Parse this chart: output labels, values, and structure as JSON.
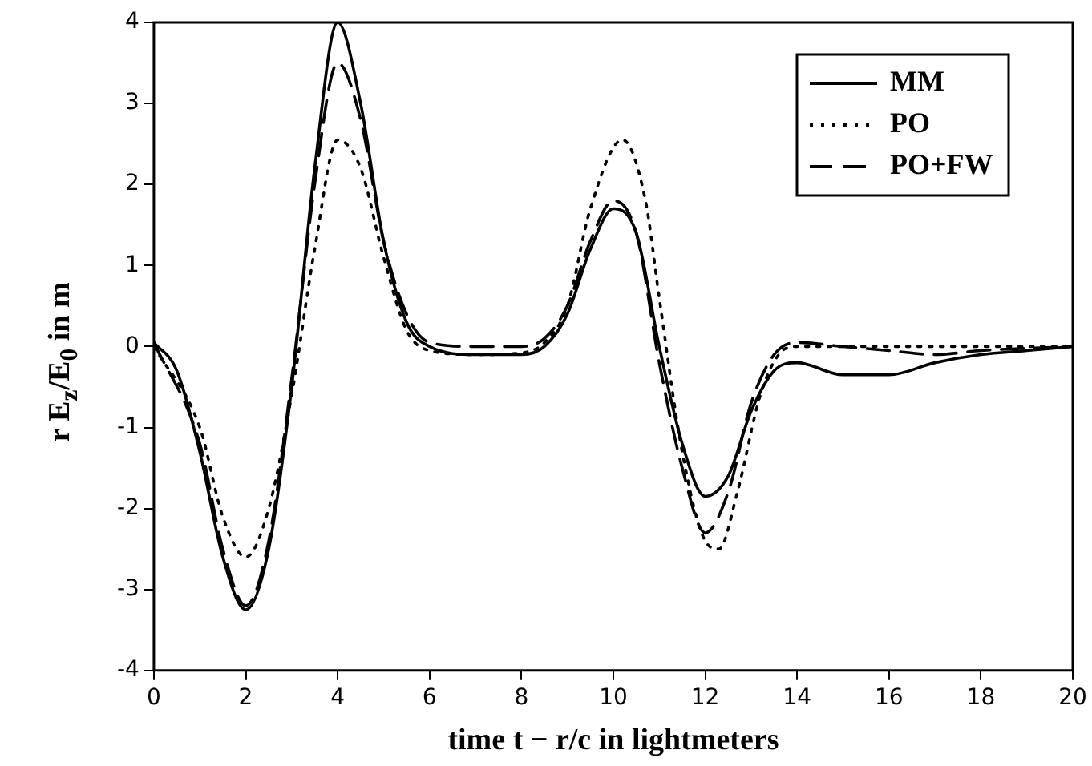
{
  "chart_data": {
    "type": "line",
    "xlabel": "time t − r/c in lightmeters",
    "ylabel": "r E$_{z}$/E$_{0}$ in m",
    "xlim": [
      0,
      20
    ],
    "ylim": [
      -4,
      4
    ],
    "xticks": [
      0,
      2,
      4,
      6,
      8,
      10,
      12,
      14,
      16,
      18,
      20
    ],
    "yticks": [
      -4,
      -3,
      -2,
      -1,
      0,
      1,
      2,
      3,
      4
    ],
    "grid": false,
    "legend": "top right",
    "marker": "none",
    "series": [
      {
        "name": "MM",
        "color": "#000000",
        "line_style": "solid",
        "x": [
          0,
          0.5,
          1,
          1.5,
          2,
          2.5,
          3,
          3.5,
          4,
          4.5,
          5,
          5.5,
          6,
          7,
          8,
          8.5,
          9,
          9.5,
          10,
          10.5,
          11,
          11.5,
          12,
          12.5,
          13,
          13.5,
          14,
          15,
          16,
          17,
          18,
          19,
          20
        ],
        "values": [
          0.05,
          -0.3,
          -1.3,
          -2.6,
          -3.25,
          -2.5,
          -0.5,
          2.2,
          4.0,
          3.0,
          1.3,
          0.3,
          0.0,
          -0.1,
          -0.1,
          0,
          0.4,
          1.2,
          1.7,
          1.4,
          0.0,
          -1.2,
          -1.85,
          -1.6,
          -0.8,
          -0.3,
          -0.2,
          -0.35,
          -0.35,
          -0.2,
          -0.1,
          -0.05,
          0
        ]
      },
      {
        "name": "PO",
        "color": "#000000",
        "line_style": "dotted",
        "x": [
          0,
          1,
          1.5,
          2,
          2.5,
          3,
          3.5,
          4,
          4.5,
          5,
          5.5,
          6,
          7,
          8,
          8.5,
          9,
          9.5,
          10.2,
          10.7,
          11,
          11.5,
          12,
          12.3,
          12.7,
          13.2,
          13.6,
          14,
          16,
          18,
          20
        ],
        "values": [
          0,
          -1.0,
          -2.1,
          -2.6,
          -2.0,
          -0.6,
          1.2,
          2.55,
          2.2,
          1.1,
          0.2,
          -0.05,
          -0.1,
          -0.08,
          0.05,
          0.5,
          1.7,
          2.55,
          1.8,
          0.6,
          -1.3,
          -2.4,
          -2.5,
          -1.8,
          -0.6,
          -0.1,
          0,
          0,
          0,
          0
        ]
      },
      {
        "name": "PO+FW",
        "color": "#000000",
        "line_style": "dashed",
        "x": [
          0,
          1,
          1.5,
          2,
          2.5,
          3,
          3.5,
          4,
          4.5,
          5,
          5.5,
          6,
          7,
          8,
          8.5,
          9,
          9.5,
          10,
          10.5,
          11,
          11.5,
          12,
          12.5,
          13,
          13.5,
          14,
          15,
          16,
          17,
          18,
          20
        ],
        "values": [
          0.05,
          -1.2,
          -2.5,
          -3.2,
          -2.4,
          -0.4,
          2.0,
          3.5,
          2.8,
          1.3,
          0.4,
          0.05,
          0,
          0,
          0.1,
          0.5,
          1.3,
          1.8,
          1.4,
          -0.2,
          -1.5,
          -2.3,
          -1.8,
          -0.7,
          -0.1,
          0.05,
          0,
          -0.05,
          -0.1,
          -0.05,
          0
        ]
      }
    ]
  }
}
